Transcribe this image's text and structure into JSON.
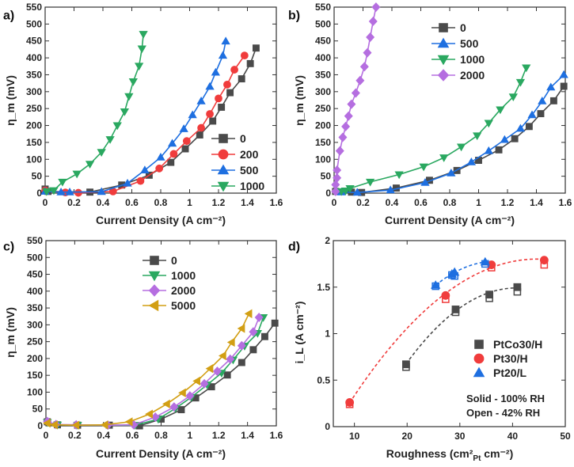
{
  "chart_data": [
    {
      "type": "line",
      "panel_label": "a)",
      "xlabel": "Current Density (A cm⁻²)",
      "ylabel": "η_m (mV)",
      "xlim": [
        0,
        1.6
      ],
      "ylim": [
        0,
        550
      ],
      "xticks": [
        "0",
        "0.2",
        "0.4",
        "0.6",
        "0.8",
        "1",
        "1.2",
        "1.4",
        "1.6"
      ],
      "yticks": [
        "0",
        "50",
        "100",
        "150",
        "200",
        "250",
        "300",
        "350",
        "400",
        "450",
        "500",
        "550"
      ],
      "legend_position": "bottom-right",
      "series": [
        {
          "name": "0",
          "color": "#4a4a4a",
          "marker": "square",
          "x": [
            0,
            0.02,
            0.31,
            0.53,
            0.72,
            0.87,
            0.97,
            1.07,
            1.16,
            1.22,
            1.28,
            1.36,
            1.42,
            1.46
          ],
          "y": [
            12,
            5,
            3,
            24,
            53,
            91,
            131,
            172,
            213,
            254,
            297,
            338,
            383,
            429
          ]
        },
        {
          "name": "200",
          "color": "#f03c3c",
          "marker": "circle",
          "x": [
            0,
            0.14,
            0.23,
            0.47,
            0.66,
            0.79,
            0.89,
            0.98,
            1.08,
            1.14,
            1.2,
            1.26,
            1.31,
            1.38
          ],
          "y": [
            8,
            2,
            1,
            5,
            36,
            73,
            116,
            154,
            193,
            234,
            280,
            321,
            365,
            407
          ]
        },
        {
          "name": "500",
          "color": "#1e6fe0",
          "marker": "triangle-up",
          "x": [
            0,
            0.11,
            0.17,
            0.39,
            0.57,
            0.69,
            0.8,
            0.88,
            0.96,
            1.02,
            1.08,
            1.14,
            1.18,
            1.23,
            1.25
          ],
          "y": [
            5,
            3,
            3,
            4,
            29,
            68,
            106,
            147,
            190,
            231,
            272,
            315,
            357,
            407,
            449
          ]
        },
        {
          "name": "1000",
          "color": "#2aa860",
          "marker": "triangle-down",
          "x": [
            0.01,
            0.06,
            0.12,
            0.22,
            0.31,
            0.39,
            0.45,
            0.5,
            0.55,
            0.58,
            0.61,
            0.65,
            0.67,
            0.68
          ],
          "y": [
            5,
            8,
            33,
            57,
            86,
            121,
            159,
            200,
            241,
            286,
            330,
            376,
            427,
            470
          ]
        }
      ]
    },
    {
      "type": "line",
      "panel_label": "b)",
      "xlabel": "Current Density (A cm⁻²)",
      "ylabel": "η_m (mV)",
      "xlim": [
        0,
        1.6
      ],
      "ylim": [
        0,
        550
      ],
      "xticks": [
        "0",
        "0.2",
        "0.4",
        "0.6",
        "0.8",
        "1",
        "1.2",
        "1.4",
        "1.6"
      ],
      "yticks": [
        "0",
        "50",
        "100",
        "150",
        "200",
        "250",
        "300",
        "350",
        "400",
        "450",
        "500",
        "550"
      ],
      "legend_position": "top-center",
      "series": [
        {
          "name": "0",
          "color": "#4a4a4a",
          "marker": "square",
          "x": [
            0.01,
            0.12,
            0.19,
            0.43,
            0.66,
            0.85,
            1.0,
            1.14,
            1.25,
            1.35,
            1.43,
            1.52,
            1.59
          ],
          "y": [
            5,
            3,
            2,
            15,
            38,
            67,
            97,
            128,
            161,
            197,
            235,
            273,
            316
          ]
        },
        {
          "name": "500",
          "color": "#1e6fe0",
          "marker": "triangle-up",
          "x": [
            0.05,
            0.16,
            0.39,
            0.63,
            0.81,
            0.95,
            1.07,
            1.18,
            1.29,
            1.37,
            1.44,
            1.5,
            1.59
          ],
          "y": [
            3,
            2,
            9,
            31,
            59,
            92,
            125,
            158,
            191,
            231,
            272,
            313,
            350
          ]
        },
        {
          "name": "1000",
          "color": "#2aa860",
          "marker": "triangle-down",
          "x": [
            0.05,
            0.08,
            0.11,
            0.25,
            0.45,
            0.62,
            0.76,
            0.88,
            0.99,
            1.07,
            1.15,
            1.24,
            1.29,
            1.33
          ],
          "y": [
            5,
            7,
            14,
            33,
            55,
            78,
            105,
            137,
            170,
            207,
            247,
            285,
            328,
            371
          ]
        },
        {
          "name": "2000",
          "color": "#b56ee0",
          "marker": "diamond",
          "x": [
            0.01,
            0.01,
            0.02,
            0.02,
            0.04,
            0.06,
            0.08,
            0.1,
            0.12,
            0.15,
            0.18,
            0.21,
            0.23,
            0.25,
            0.27,
            0.29
          ],
          "y": [
            5,
            25,
            45,
            68,
            125,
            165,
            197,
            228,
            263,
            296,
            333,
            374,
            415,
            461,
            508,
            550
          ]
        }
      ]
    },
    {
      "type": "line",
      "panel_label": "c)",
      "xlabel": "Current Density (A cm⁻²)",
      "ylabel": "η_m (mV)",
      "xlim": [
        0,
        1.6
      ],
      "ylim": [
        0,
        550
      ],
      "xticks": [
        "0",
        "0.2",
        "0.4",
        "0.6",
        "0.8",
        "1",
        "1.2",
        "1.4",
        "1.6"
      ],
      "yticks": [
        "0",
        "50",
        "100",
        "150",
        "200",
        "250",
        "300",
        "350",
        "400",
        "450",
        "500",
        "550"
      ],
      "legend_position": "top-center",
      "series": [
        {
          "name": "0",
          "color": "#4a4a4a",
          "marker": "square",
          "x": [
            0.01,
            0.08,
            0.22,
            0.44,
            0.65,
            0.8,
            0.94,
            1.04,
            1.15,
            1.26,
            1.36,
            1.44,
            1.52,
            1.59
          ],
          "y": [
            12,
            3,
            2,
            2,
            0,
            20,
            48,
            83,
            116,
            151,
            188,
            226,
            265,
            305
          ]
        },
        {
          "name": "1000",
          "color": "#2aa860",
          "marker": "triangle-down",
          "x": [
            0.01,
            0.08,
            0.22,
            0.62,
            0.78,
            0.9,
            1.01,
            1.12,
            1.22,
            1.3,
            1.38,
            1.47,
            1.51
          ],
          "y": [
            10,
            3,
            2,
            2,
            20,
            52,
            85,
            122,
            157,
            196,
            237,
            275,
            322
          ]
        },
        {
          "name": "2000",
          "color": "#b56ee0",
          "marker": "diamond",
          "x": [
            0.01,
            0.07,
            0.21,
            0.43,
            0.61,
            0.76,
            0.89,
            1.0,
            1.1,
            1.19,
            1.28,
            1.36,
            1.44,
            1.48
          ],
          "y": [
            13,
            4,
            3,
            2,
            3,
            26,
            56,
            89,
            125,
            162,
            198,
            238,
            279,
            322
          ]
        },
        {
          "name": "5000",
          "color": "#d29f14",
          "marker": "triangle-left",
          "x": [
            0.01,
            0.06,
            0.21,
            0.41,
            0.58,
            0.72,
            0.84,
            0.95,
            1.05,
            1.14,
            1.23,
            1.29,
            1.36,
            1.41
          ],
          "y": [
            8,
            3,
            2,
            3,
            12,
            35,
            65,
            98,
            133,
            170,
            208,
            248,
            289,
            333
          ]
        }
      ]
    },
    {
      "type": "scatter",
      "panel_label": "d)",
      "xlabel": "Roughness (cm²",
      "xlabel_sub": "Pt",
      "xlabel_end": " cm⁻²)",
      "ylabel": "i_L (A cm⁻²)",
      "xlim": [
        6,
        50
      ],
      "ylim": [
        0,
        2
      ],
      "xticks": [
        "10",
        "20",
        "30",
        "40",
        "50"
      ],
      "yticks": [
        "0",
        "0.5",
        "1",
        "1.5",
        "2"
      ],
      "legend_position": "right",
      "notes": [
        "Solid - 100% RH",
        "Open - 42% RH"
      ],
      "series": [
        {
          "name": "PtCo30/H",
          "color": "#4a4a4a",
          "marker": "square",
          "x": [
            19.8,
            29.2,
            35.6,
            40.9
          ],
          "y_solid": [
            0.67,
            1.26,
            1.42,
            1.5
          ],
          "y_open": [
            0.64,
            1.23,
            1.38,
            1.45
          ]
        },
        {
          "name": "Pt30/H",
          "color": "#f03c3c",
          "marker": "circle",
          "x": [
            9.1,
            27.3,
            36,
            46
          ],
          "y_solid": [
            0.26,
            1.41,
            1.74,
            1.79
          ],
          "y_open": [
            0.24,
            1.37,
            1.71,
            1.74
          ]
        },
        {
          "name": "Pt20/L",
          "color": "#1e6fe0",
          "marker": "triangle-up",
          "x": [
            25.4,
            28.5,
            29,
            34.8
          ],
          "y_solid": [
            1.52,
            1.64,
            1.66,
            1.77
          ],
          "y_open": [
            1.51,
            1.63,
            1.62,
            1.75
          ]
        }
      ]
    }
  ]
}
